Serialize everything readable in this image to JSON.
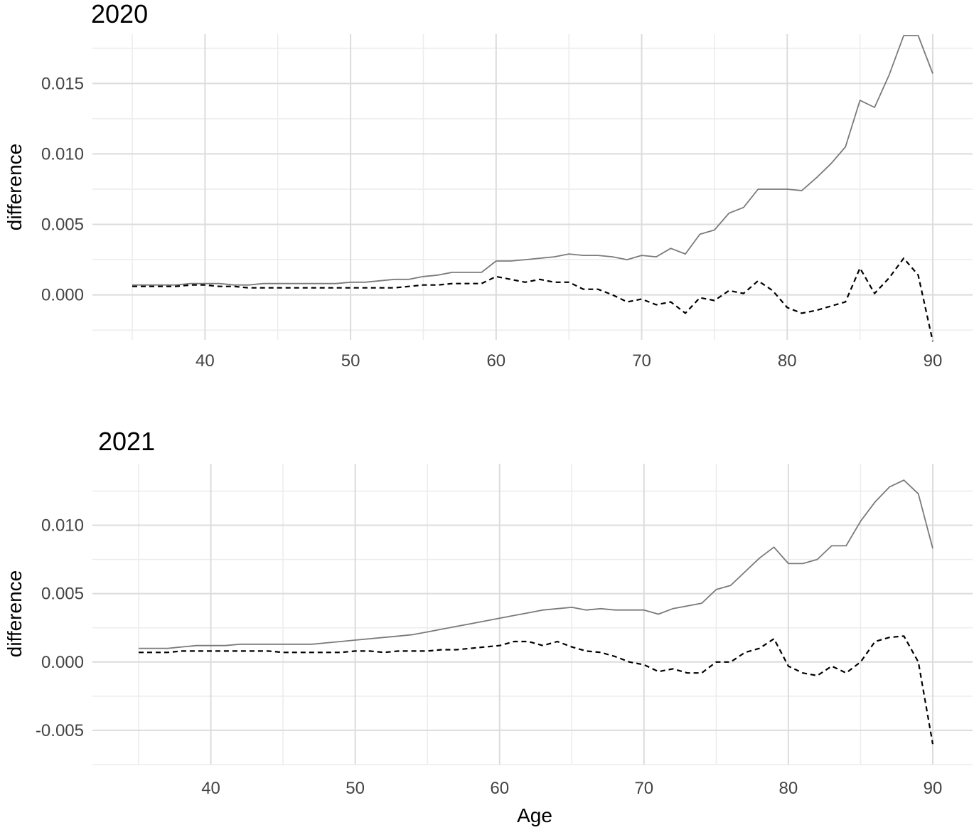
{
  "chart_data": [
    {
      "type": "line",
      "title": "2020",
      "xlabel": "",
      "ylabel": "difference",
      "xlim": [
        35,
        90
      ],
      "ylim": [
        -0.0032,
        0.0185
      ],
      "xticks": [
        "40",
        "50",
        "60",
        "70",
        "80",
        "90"
      ],
      "yticks": [
        "0.000",
        "0.005",
        "0.010",
        "0.015"
      ],
      "grid": true,
      "series": [
        {
          "style": "solid",
          "color": "#7a7a7a",
          "x": [
            35,
            36,
            37,
            38,
            39,
            40,
            41,
            42,
            43,
            44,
            45,
            46,
            47,
            48,
            49,
            50,
            51,
            52,
            53,
            54,
            55,
            56,
            57,
            58,
            59,
            60,
            61,
            62,
            63,
            64,
            65,
            66,
            67,
            68,
            69,
            70,
            71,
            72,
            73,
            74,
            75,
            76,
            77,
            78,
            79,
            80,
            81,
            82,
            83,
            84,
            85,
            86,
            87,
            88,
            89,
            90
          ],
          "values": [
            0.0007,
            0.0007,
            0.0007,
            0.0007,
            0.0008,
            0.0008,
            0.0008,
            0.0007,
            0.0007,
            0.0008,
            0.0008,
            0.0008,
            0.0008,
            0.0008,
            0.0008,
            0.0009,
            0.0009,
            0.001,
            0.0011,
            0.0011,
            0.0013,
            0.0014,
            0.0016,
            0.0016,
            0.0016,
            0.0024,
            0.0024,
            0.0025,
            0.0026,
            0.0027,
            0.0029,
            0.0028,
            0.0028,
            0.0027,
            0.0025,
            0.0028,
            0.0027,
            0.0033,
            0.0029,
            0.0043,
            0.0046,
            0.0058,
            0.0062,
            0.0075,
            0.0075,
            0.0075,
            0.0074,
            0.0083,
            0.0093,
            0.0105,
            0.0138,
            0.0133,
            0.0156,
            0.0184,
            0.0184,
            0.0157
          ]
        },
        {
          "style": "dashed",
          "color": "#000000",
          "x": [
            35,
            36,
            37,
            38,
            39,
            40,
            41,
            42,
            43,
            44,
            45,
            46,
            47,
            48,
            49,
            50,
            51,
            52,
            53,
            54,
            55,
            56,
            57,
            58,
            59,
            60,
            61,
            62,
            63,
            64,
            65,
            66,
            67,
            68,
            69,
            70,
            71,
            72,
            73,
            74,
            75,
            76,
            77,
            78,
            79,
            80,
            81,
            82,
            83,
            84,
            85,
            86,
            87,
            88,
            89,
            90
          ],
          "values": [
            0.0006,
            0.0006,
            0.0006,
            0.0006,
            0.0007,
            0.0007,
            0.0006,
            0.0006,
            0.0005,
            0.0005,
            0.0005,
            0.0005,
            0.0005,
            0.0005,
            0.0005,
            0.0005,
            0.0005,
            0.0005,
            0.0005,
            0.0006,
            0.0007,
            0.0007,
            0.0008,
            0.0008,
            0.0008,
            0.0013,
            0.0011,
            0.0009,
            0.0011,
            0.0009,
            0.0009,
            0.0004,
            0.0004,
            0.0,
            -0.0005,
            -0.0003,
            -0.0007,
            -0.0005,
            -0.0013,
            -0.0002,
            -0.0004,
            0.0003,
            0.0001,
            0.001,
            0.0003,
            -0.0009,
            -0.0013,
            -0.0011,
            -0.0008,
            -0.0005,
            0.0019,
            0.0001,
            0.0012,
            0.0026,
            0.0014,
            -0.0033
          ]
        }
      ]
    },
    {
      "type": "line",
      "title": "2021",
      "xlabel": "Age",
      "ylabel": "difference",
      "xlim": [
        35,
        90
      ],
      "ylim": [
        -0.0075,
        0.0145
      ],
      "xticks": [
        "40",
        "50",
        "60",
        "70",
        "80",
        "90"
      ],
      "yticks": [
        "-0.005",
        "0.000",
        "0.005",
        "0.010"
      ],
      "grid": true,
      "series": [
        {
          "style": "solid",
          "color": "#7a7a7a",
          "x": [
            35,
            36,
            37,
            38,
            39,
            40,
            41,
            42,
            43,
            44,
            45,
            46,
            47,
            48,
            49,
            50,
            51,
            52,
            53,
            54,
            55,
            56,
            57,
            58,
            59,
            60,
            61,
            62,
            63,
            64,
            65,
            66,
            67,
            68,
            69,
            70,
            71,
            72,
            73,
            74,
            75,
            76,
            77,
            78,
            79,
            80,
            81,
            82,
            83,
            84,
            85,
            86,
            87,
            88,
            89,
            90
          ],
          "values": [
            0.001,
            0.001,
            0.001,
            0.0011,
            0.0012,
            0.0012,
            0.0012,
            0.0013,
            0.0013,
            0.0013,
            0.0013,
            0.0013,
            0.0013,
            0.0014,
            0.0015,
            0.0016,
            0.0017,
            0.0018,
            0.0019,
            0.002,
            0.0022,
            0.0024,
            0.0026,
            0.0028,
            0.003,
            0.0032,
            0.0034,
            0.0036,
            0.0038,
            0.0039,
            0.004,
            0.0038,
            0.0039,
            0.0038,
            0.0038,
            0.0038,
            0.0035,
            0.0039,
            0.0041,
            0.0043,
            0.0053,
            0.0056,
            0.0066,
            0.0076,
            0.0084,
            0.0072,
            0.0072,
            0.0075,
            0.0085,
            0.0085,
            0.0103,
            0.0117,
            0.0128,
            0.0133,
            0.0123,
            0.0083
          ]
        },
        {
          "style": "dashed",
          "color": "#000000",
          "x": [
            35,
            36,
            37,
            38,
            39,
            40,
            41,
            42,
            43,
            44,
            45,
            46,
            47,
            48,
            49,
            50,
            51,
            52,
            53,
            54,
            55,
            56,
            57,
            58,
            59,
            60,
            61,
            62,
            63,
            64,
            65,
            66,
            67,
            68,
            69,
            70,
            71,
            72,
            73,
            74,
            75,
            76,
            77,
            78,
            79,
            80,
            81,
            82,
            83,
            84,
            85,
            86,
            87,
            88,
            89,
            90
          ],
          "values": [
            0.0007,
            0.0007,
            0.0007,
            0.0008,
            0.0008,
            0.0008,
            0.0008,
            0.0008,
            0.0008,
            0.0008,
            0.0007,
            0.0007,
            0.0007,
            0.0007,
            0.0007,
            0.0008,
            0.0008,
            0.0007,
            0.0008,
            0.0008,
            0.0008,
            0.0009,
            0.0009,
            0.001,
            0.0011,
            0.0012,
            0.0015,
            0.0015,
            0.0012,
            0.0015,
            0.0011,
            0.0008,
            0.0007,
            0.0004,
            0.0,
            -0.0002,
            -0.0007,
            -0.0005,
            -0.0008,
            -0.0008,
            0.0,
            0.0,
            0.0007,
            0.001,
            0.0017,
            -0.0003,
            -0.0008,
            -0.001,
            -0.0003,
            -0.0008,
            0.0,
            0.0015,
            0.0018,
            0.0019,
            0.0,
            -0.006
          ]
        }
      ]
    }
  ]
}
